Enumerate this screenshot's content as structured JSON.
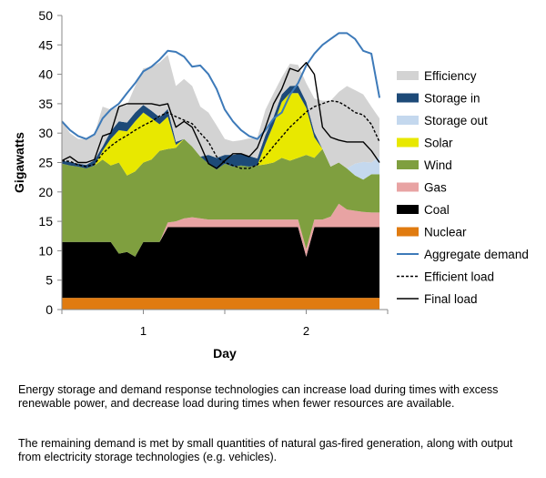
{
  "chart_data": {
    "type": "area",
    "ylabel": "Gigawatts",
    "xlabel": "Day",
    "ylim": [
      0,
      50
    ],
    "yticks": [
      0,
      5,
      10,
      15,
      20,
      25,
      30,
      35,
      40,
      45,
      50
    ],
    "xticks": [
      {
        "x": 1,
        "label": "1"
      },
      {
        "x": 2,
        "label": "2"
      }
    ],
    "x": [
      0.5,
      0.55,
      0.6,
      0.65,
      0.7,
      0.75,
      0.8,
      0.85,
      0.9,
      0.95,
      1.0,
      1.05,
      1.1,
      1.15,
      1.2,
      1.25,
      1.3,
      1.35,
      1.4,
      1.45,
      1.5,
      1.55,
      1.6,
      1.65,
      1.7,
      1.75,
      1.8,
      1.85,
      1.9,
      1.95,
      2.0,
      2.05,
      2.1,
      2.15,
      2.2,
      2.25,
      2.3,
      2.35,
      2.4,
      2.45
    ],
    "grid": false,
    "legend_position": "right",
    "stacked_series": [
      {
        "name": "Nuclear",
        "color": "#e07b10",
        "values": [
          2,
          2,
          2,
          2,
          2,
          2,
          2,
          2,
          2,
          2,
          2,
          2,
          2,
          2,
          2,
          2,
          2,
          2,
          2,
          2,
          2,
          2,
          2,
          2,
          2,
          2,
          2,
          2,
          2,
          2,
          2,
          2,
          2,
          2,
          2,
          2,
          2,
          2,
          2,
          2
        ]
      },
      {
        "name": "Coal",
        "color": "#000000",
        "values": [
          9.5,
          9.5,
          9.5,
          9.5,
          9.5,
          9.5,
          9.5,
          7.5,
          7.8,
          7.0,
          9.5,
          9.5,
          9.5,
          12,
          12,
          12,
          12,
          12,
          12,
          12,
          12,
          12,
          12,
          12,
          12,
          12,
          12,
          12,
          12,
          12,
          7.0,
          12,
          12,
          12,
          12,
          12,
          12,
          12,
          12,
          12
        ]
      },
      {
        "name": "Gas",
        "color": "#e8a3a3",
        "values": [
          0,
          0,
          0,
          0,
          0,
          0,
          0,
          0,
          0,
          0,
          0,
          0,
          0,
          0.8,
          1.0,
          1.5,
          1.7,
          1.5,
          1.3,
          1.3,
          1.3,
          1.3,
          1.3,
          1.3,
          1.3,
          1.3,
          1.3,
          1.3,
          1.3,
          1.3,
          1.3,
          1.3,
          1.3,
          1.8,
          4.0,
          3.0,
          2.8,
          2.6,
          2.5,
          2.5
        ]
      },
      {
        "name": "Wind",
        "color": "#7f9f3f",
        "values": [
          13.3,
          13.0,
          12.8,
          12.5,
          13.0,
          14.0,
          13.0,
          15.5,
          13.0,
          14.5,
          13.5,
          14.0,
          15.5,
          12.5,
          12.5,
          13.5,
          12.0,
          10.5,
          9.5,
          8.5,
          9.5,
          9.0,
          9.2,
          9.0,
          9.2,
          9.4,
          9.7,
          10.5,
          10.0,
          10.5,
          16.0,
          10.5,
          12.0,
          8.5,
          7.0,
          7.0,
          6.0,
          5.5,
          6.5,
          6.5
        ]
      },
      {
        "name": "Solar",
        "color": "#e8e800",
        "values": [
          0,
          0,
          0,
          0,
          0,
          1.5,
          4.5,
          5.5,
          7.5,
          8.5,
          8.5,
          7.0,
          4.5,
          5.5,
          0.5,
          0,
          0,
          0,
          0,
          0,
          0,
          0,
          0,
          0,
          0,
          3.5,
          6.5,
          9.5,
          11.5,
          11.0,
          8.0,
          3.5,
          0,
          0,
          0,
          0,
          0,
          0,
          0,
          0
        ]
      },
      {
        "name": "Storage out",
        "color": "#c4d8ee",
        "values": [
          0,
          0,
          0,
          0,
          0,
          0,
          0,
          0,
          0,
          0,
          0,
          0,
          0,
          0,
          0,
          0,
          0,
          0,
          0,
          0,
          0,
          0,
          0,
          0,
          0,
          0,
          0,
          0,
          0,
          0,
          0,
          0,
          0,
          0,
          0,
          0,
          2.0,
          3.0,
          2.0,
          3.0
        ]
      },
      {
        "name": "Storage in",
        "color": "#1d4a78",
        "values": [
          0.5,
          0.6,
          0.5,
          0.6,
          0.9,
          0.7,
          1.3,
          1.5,
          1.5,
          1.5,
          1.3,
          1.3,
          1.2,
          1.3,
          0.5,
          0,
          0,
          0,
          1.5,
          2.0,
          1.5,
          2.0,
          2.0,
          1.8,
          1.2,
          1.5,
          1.3,
          1.3,
          1.2,
          1.3,
          1.0,
          0.8,
          0,
          0,
          0,
          0,
          0,
          0,
          0,
          0
        ]
      },
      {
        "name": "Efficiency",
        "color": "#d3d3d3",
        "values": [
          6.7,
          4.9,
          4.2,
          4.4,
          4.4,
          6.8,
          3.7,
          2.5,
          3.0,
          4.5,
          6.2,
          7.5,
          9.3,
          9.2,
          9.5,
          10.2,
          10.3,
          8.5,
          7.2,
          5.5,
          2.7,
          2.3,
          2.3,
          3.0,
          3.5,
          4.3,
          4.0,
          2.9,
          3.8,
          3.5,
          3.2,
          5.8,
          8.2,
          11.2,
          12.0,
          14.0,
          12.5,
          11.5,
          9.5,
          6.5
        ]
      }
    ],
    "line_series": [
      {
        "name": "Aggregate demand",
        "color": "#3d7ab9",
        "style": "solid",
        "values": [
          32,
          30.5,
          29.5,
          29,
          29.8,
          32.5,
          34,
          35,
          36.8,
          38.5,
          40.5,
          41.3,
          42.5,
          44,
          43.8,
          43,
          41.3,
          41.5,
          40,
          37.5,
          34,
          32,
          30.5,
          29.5,
          29,
          30.5,
          32.5,
          33.5,
          36.5,
          38.5,
          41.5,
          43.5,
          45,
          46,
          47,
          47,
          46,
          44,
          43.5,
          36
        ]
      },
      {
        "name": "Efficient load",
        "color": "#000000",
        "style": "dashed",
        "values": [
          25.3,
          25.2,
          24.6,
          24.3,
          24.7,
          26.5,
          27.8,
          28.8,
          29.6,
          30.5,
          31.3,
          32.0,
          32.9,
          33.5,
          32.8,
          32.2,
          31.6,
          30.0,
          28.5,
          26.0,
          25.0,
          24.5,
          24.0,
          24.0,
          24.6,
          26.1,
          27.8,
          29.4,
          31.0,
          32.3,
          33.6,
          34.5,
          35.0,
          35.5,
          35.3,
          34.5,
          33.5,
          33.1,
          31.5,
          28.5
        ]
      },
      {
        "name": "Final load",
        "color": "#000000",
        "style": "solid",
        "values": [
          25.3,
          26.0,
          25.0,
          25.0,
          25.5,
          29.5,
          30.0,
          34.5,
          35.0,
          35.0,
          35.0,
          35.0,
          34.7,
          35.0,
          31.0,
          32.0,
          31.0,
          28.0,
          24.8,
          24.0,
          25.3,
          26.5,
          26.5,
          26.0,
          27.5,
          31.0,
          35.0,
          37.5,
          41.0,
          40.5,
          42.0,
          40.0,
          31.0,
          29.3,
          28.8,
          28.5,
          28.5,
          28.5,
          27.0,
          25.0
        ]
      }
    ]
  },
  "captions": {
    "paragraph_1": "Energy storage and demand response technologies can increase load during times with excess renewable power, and decrease load during times when fewer resources are available.",
    "paragraph_2": "The remaining demand is met by small quantities of natural gas-fired generation, along with output from electricity storage technologies (e.g. vehicles)."
  }
}
